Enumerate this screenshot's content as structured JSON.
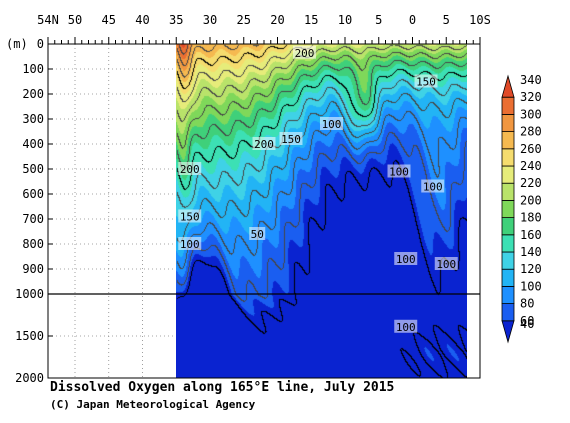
{
  "chart_data": {
    "type": "heatmap",
    "title": "Dissolved Oxygen along 165°E line, July 2015",
    "credit": "(C) Japan Meteorological Agency",
    "ylabel_unit": "(m)",
    "x_tick_labels": [
      "54N",
      "50",
      "45",
      "40",
      "35",
      "30",
      "25",
      "20",
      "15",
      "10",
      "5",
      "0",
      "5",
      "10S"
    ],
    "x_ticks_lat": [
      54,
      50,
      45,
      40,
      35,
      30,
      25,
      20,
      15,
      10,
      5,
      0,
      -5,
      -10
    ],
    "xlim": [
      54,
      -10
    ],
    "data_lat_range": [
      35,
      -8
    ],
    "y_tick_labels": [
      "0",
      "100",
      "200",
      "300",
      "400",
      "500",
      "600",
      "700",
      "800",
      "900",
      "1000",
      "1500",
      "2000"
    ],
    "y_ticks_depth": [
      0,
      100,
      200,
      300,
      400,
      500,
      600,
      700,
      800,
      900,
      1000,
      1500,
      2000
    ],
    "y_axis_break": 1000,
    "ylim": [
      0,
      2000
    ],
    "colorbar": {
      "levels": [
        40,
        60,
        80,
        100,
        120,
        140,
        160,
        180,
        200,
        220,
        240,
        260,
        280,
        300,
        320,
        340
      ],
      "colors": [
        "#0a23d0",
        "#1a5ef0",
        "#1e90ff",
        "#22b4f5",
        "#3fd2e6",
        "#3ce0b4",
        "#3fd07a",
        "#7fd85a",
        "#b9e36a",
        "#e6ec7a",
        "#f5dc6e",
        "#f5b950",
        "#f09640",
        "#ea6e32",
        "#e04a28"
      ]
    },
    "contour_labels": [
      {
        "text": "200",
        "lat": 16,
        "depth": 35
      },
      {
        "text": "150",
        "lat": -2,
        "depth": 150
      },
      {
        "text": "100",
        "lat": 12,
        "depth": 320
      },
      {
        "text": "200",
        "lat": 22,
        "depth": 400
      },
      {
        "text": "150",
        "lat": 18,
        "depth": 380
      },
      {
        "text": "200",
        "lat": 33,
        "depth": 500
      },
      {
        "text": "100",
        "lat": 2,
        "depth": 510
      },
      {
        "text": "100",
        "lat": -3,
        "depth": 570
      },
      {
        "text": "150",
        "lat": 33,
        "depth": 690
      },
      {
        "text": "50",
        "lat": 23,
        "depth": 760
      },
      {
        "text": "100",
        "lat": 33,
        "depth": 800
      },
      {
        "text": "100",
        "lat": 1,
        "depth": 860
      },
      {
        "text": "100",
        "lat": -5,
        "depth": 880
      },
      {
        "text": "100",
        "lat": 1,
        "depth": 1390
      }
    ]
  }
}
